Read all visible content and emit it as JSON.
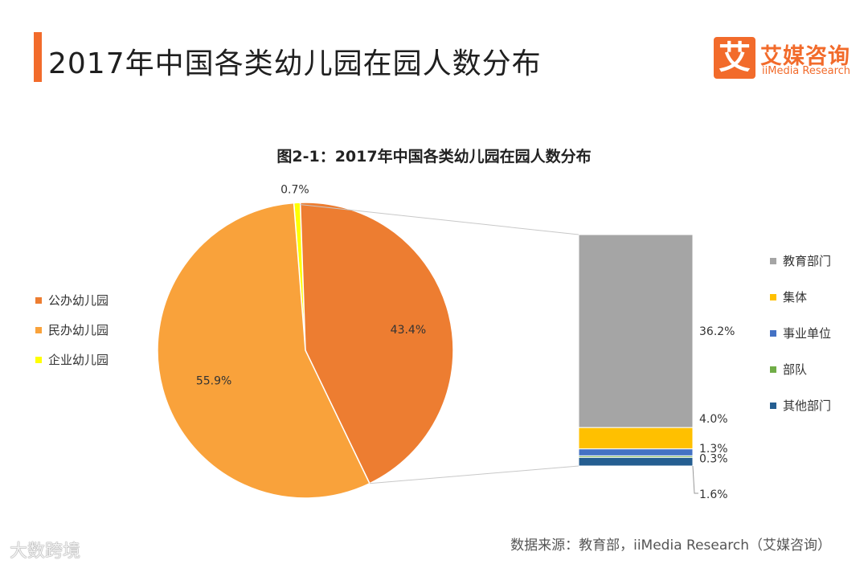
{
  "header": {
    "title": "2017年中国各类幼儿园在园人数分布",
    "accent_color": "#f26b2b"
  },
  "logo": {
    "mark": "艾",
    "name_cn": "艾媒咨询",
    "name_en": "iiMedia Research",
    "color": "#f26b2b"
  },
  "chart_data": {
    "type": "bar-of-pie",
    "title": "图2-1：2017年中国各类幼儿园在园人数分布",
    "pie": {
      "slices": [
        {
          "name": "公办幼儿园",
          "value": 43.4,
          "label": "43.4%",
          "color": "#ed7d31"
        },
        {
          "name": "民办幼儿园",
          "value": 55.9,
          "label": "55.9%",
          "color": "#f9a23b"
        },
        {
          "name": "企业幼儿园",
          "value": 0.7,
          "label": "0.7%",
          "color": "#ffff00"
        }
      ]
    },
    "stacked_bar": {
      "segments": [
        {
          "name": "教育部门",
          "value": 36.2,
          "label": "36.2%",
          "color": "#a5a5a5"
        },
        {
          "name": "集体",
          "value": 4.0,
          "label": "4.0%",
          "color": "#ffc000"
        },
        {
          "name": "事业单位",
          "value": 1.3,
          "label": "1.3%",
          "color": "#4472c4"
        },
        {
          "name": "部队",
          "value": 0.3,
          "label": "0.3%",
          "color": "#70ad47"
        },
        {
          "name": "其他部门",
          "value": 1.6,
          "label": "1.6%",
          "color": "#255e91"
        }
      ]
    },
    "connector_color": "#c8c8c8",
    "label_color": "#333333"
  },
  "footer": {
    "source": "数据来源：教育部，iiMedia Research（艾媒咨询）",
    "watermark": "大数跨境"
  }
}
